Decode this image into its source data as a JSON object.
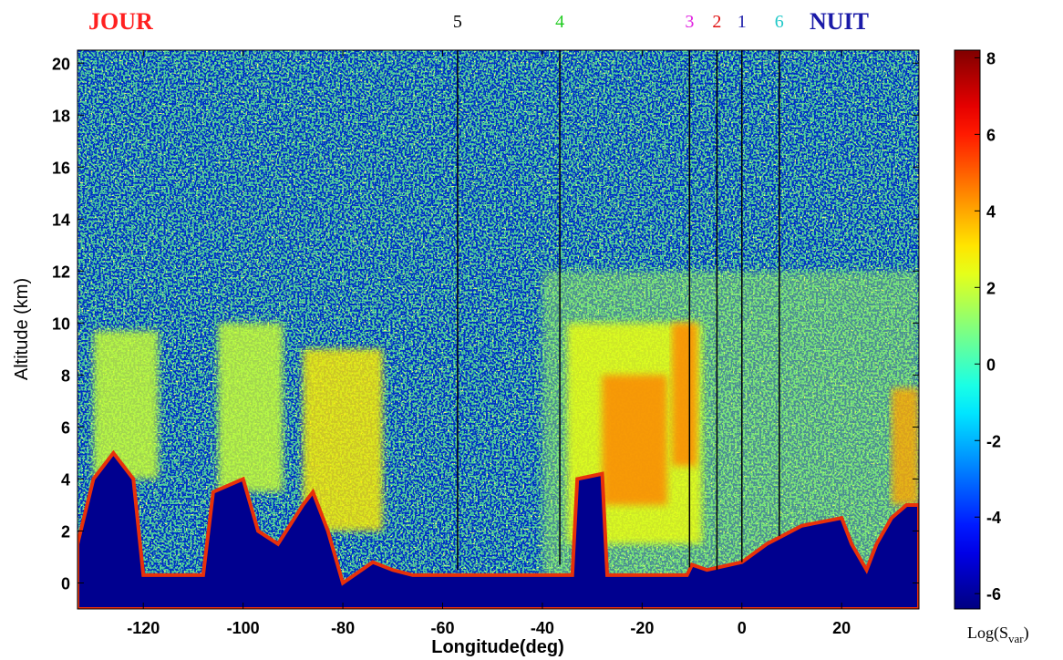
{
  "chart_data": {
    "type": "heatmap",
    "xlabel": "Longitude(deg)",
    "ylabel": "Altitude (km)",
    "xlim": [
      -133.2,
      35.5
    ],
    "ylim": [
      -1,
      20.5
    ],
    "xticks": [
      -120,
      -100,
      -80,
      -60,
      -40,
      -20,
      0,
      20
    ],
    "yticks": [
      0,
      2,
      4,
      6,
      8,
      10,
      12,
      14,
      16,
      18,
      20
    ],
    "left_label": {
      "text": "JOUR",
      "color": "#ff2020"
    },
    "right_label": {
      "text": "NUIT",
      "color": "#1a1aa8"
    },
    "colorbar": {
      "label": {
        "main": "Log(S",
        "sub": "var",
        "end": ")"
      },
      "clim": [
        -6.4,
        8.2
      ],
      "ticks": [
        -6,
        -4,
        -2,
        0,
        2,
        4,
        6,
        8
      ]
    },
    "markers": [
      {
        "label": "5",
        "color": "#000000",
        "x": -57,
        "bottom": 0.5
      },
      {
        "label": "4",
        "color": "#22cc22",
        "x": -36.5,
        "bottom": 0.7
      },
      {
        "label": "3",
        "color": "#e020e0",
        "x": -10.5,
        "bottom": 0.6
      },
      {
        "label": "2",
        "color": "#e01010",
        "x": -5,
        "bottom": 0.5
      },
      {
        "label": "1",
        "color": "#1a1aa8",
        "x": 0,
        "bottom": 0.8
      },
      {
        "label": "6",
        "color": "#20c8c8",
        "x": 7.5,
        "bottom": 1.8
      }
    ],
    "clouds": [
      {
        "x0": -40,
        "x1": 35.5,
        "y0": 0,
        "y1": 12,
        "value": 1.5
      },
      {
        "x0": -130,
        "x1": -117,
        "y0": 4,
        "y1": 9.7,
        "value": 2
      },
      {
        "x0": -105,
        "x1": -92,
        "y0": 3.5,
        "y1": 10,
        "value": 2
      },
      {
        "x0": -88,
        "x1": -72,
        "y0": 2,
        "y1": 9,
        "value": 3
      },
      {
        "x0": -35,
        "x1": -8,
        "y0": 1.5,
        "y1": 10,
        "value": 2.5
      },
      {
        "x0": -28,
        "x1": -15,
        "y0": 3,
        "y1": 8,
        "value": 4.5
      },
      {
        "x0": -14,
        "x1": -9,
        "y0": 4.5,
        "y1": 10,
        "value": 4.5
      },
      {
        "x0": 30,
        "x1": 35.5,
        "y0": 3,
        "y1": 7.5,
        "value": 4
      }
    ],
    "surface": {
      "x": [
        -133.2,
        -130,
        -126,
        -122,
        -120,
        -108,
        -106,
        -100,
        -97,
        -93,
        -88,
        -86,
        -83,
        -80,
        -74,
        -70,
        -66,
        -50,
        -34,
        -33,
        -28,
        -27,
        -11,
        -10,
        -7,
        0,
        5,
        8,
        12,
        20,
        22,
        25,
        27,
        30,
        33,
        35.5
      ],
      "altitude": [
        1.5,
        4,
        5,
        4,
        0.3,
        0.3,
        3.5,
        4,
        2,
        1.5,
        3,
        3.5,
        2,
        0,
        0.8,
        0.5,
        0.3,
        0.3,
        0.3,
        4,
        4.2,
        0.3,
        0.3,
        0.7,
        0.5,
        0.8,
        1.5,
        1.8,
        2.2,
        2.5,
        1.5,
        0.5,
        1.5,
        2.5,
        3,
        3
      ]
    }
  }
}
